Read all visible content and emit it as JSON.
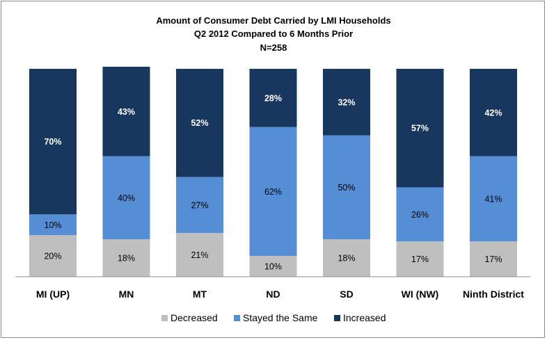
{
  "chart_data": {
    "type": "bar",
    "stacked": true,
    "percent_stacked": true,
    "title_lines": [
      "Amount of Consumer Debt Carried by LMI Households",
      "Q2 2012 Compared to 6 Months Prior",
      "N=258"
    ],
    "categories": [
      "MI (UP)",
      "MN",
      "MT",
      "ND",
      "SD",
      "WI (NW)",
      "Ninth District"
    ],
    "series": [
      {
        "name": "Decreased",
        "color": "#bfbfbf",
        "label_color": "#000000",
        "values": [
          20,
          18,
          21,
          10,
          18,
          17,
          17
        ]
      },
      {
        "name": "Stayed the Same",
        "color": "#558ed5",
        "label_color": "#000000",
        "values": [
          10,
          40,
          27,
          62,
          50,
          26,
          41
        ]
      },
      {
        "name": "Increased",
        "color": "#17375e",
        "label_color": "#ffffff",
        "values": [
          70,
          43,
          52,
          28,
          32,
          57,
          42
        ]
      }
    ],
    "value_suffix": "%",
    "ylim": [
      0,
      100
    ],
    "grid": false,
    "legend_position": "bottom"
  }
}
